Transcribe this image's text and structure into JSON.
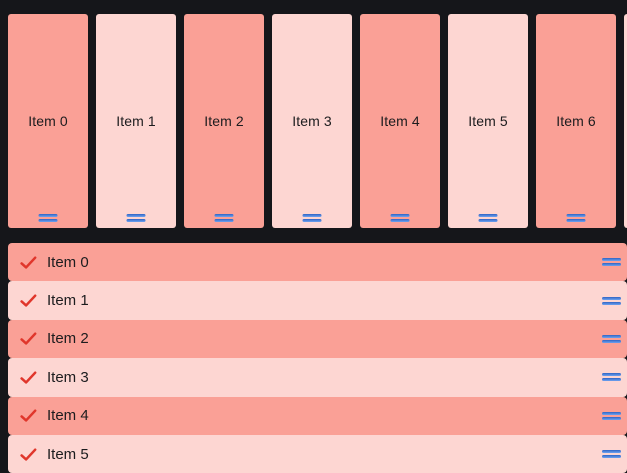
{
  "theme": {
    "background": "#15161a",
    "salmon": "#faa096",
    "pink_light": "#fdd6d2",
    "handle_blue_dark": "#2f63c4",
    "handle_blue_light": "#6fa3ef",
    "check_red": "#e0362b",
    "text": "#1c1c1e"
  },
  "board": {
    "cards": [
      {
        "label": "Item 0",
        "tone": "dark"
      },
      {
        "label": "Item 1",
        "tone": "light"
      },
      {
        "label": "Item 2",
        "tone": "dark"
      },
      {
        "label": "Item 3",
        "tone": "light"
      },
      {
        "label": "Item 4",
        "tone": "dark"
      },
      {
        "label": "Item 5",
        "tone": "light"
      },
      {
        "label": "Item 6",
        "tone": "dark"
      },
      {
        "tone": "light"
      }
    ]
  },
  "list": {
    "rows": [
      {
        "label": "Item 0",
        "tone": "dark"
      },
      {
        "label": "Item 1",
        "tone": "light"
      },
      {
        "label": "Item 2",
        "tone": "dark"
      },
      {
        "label": "Item 3",
        "tone": "light"
      },
      {
        "label": "Item 4",
        "tone": "dark"
      },
      {
        "label": "Item 5",
        "tone": "light"
      }
    ]
  }
}
